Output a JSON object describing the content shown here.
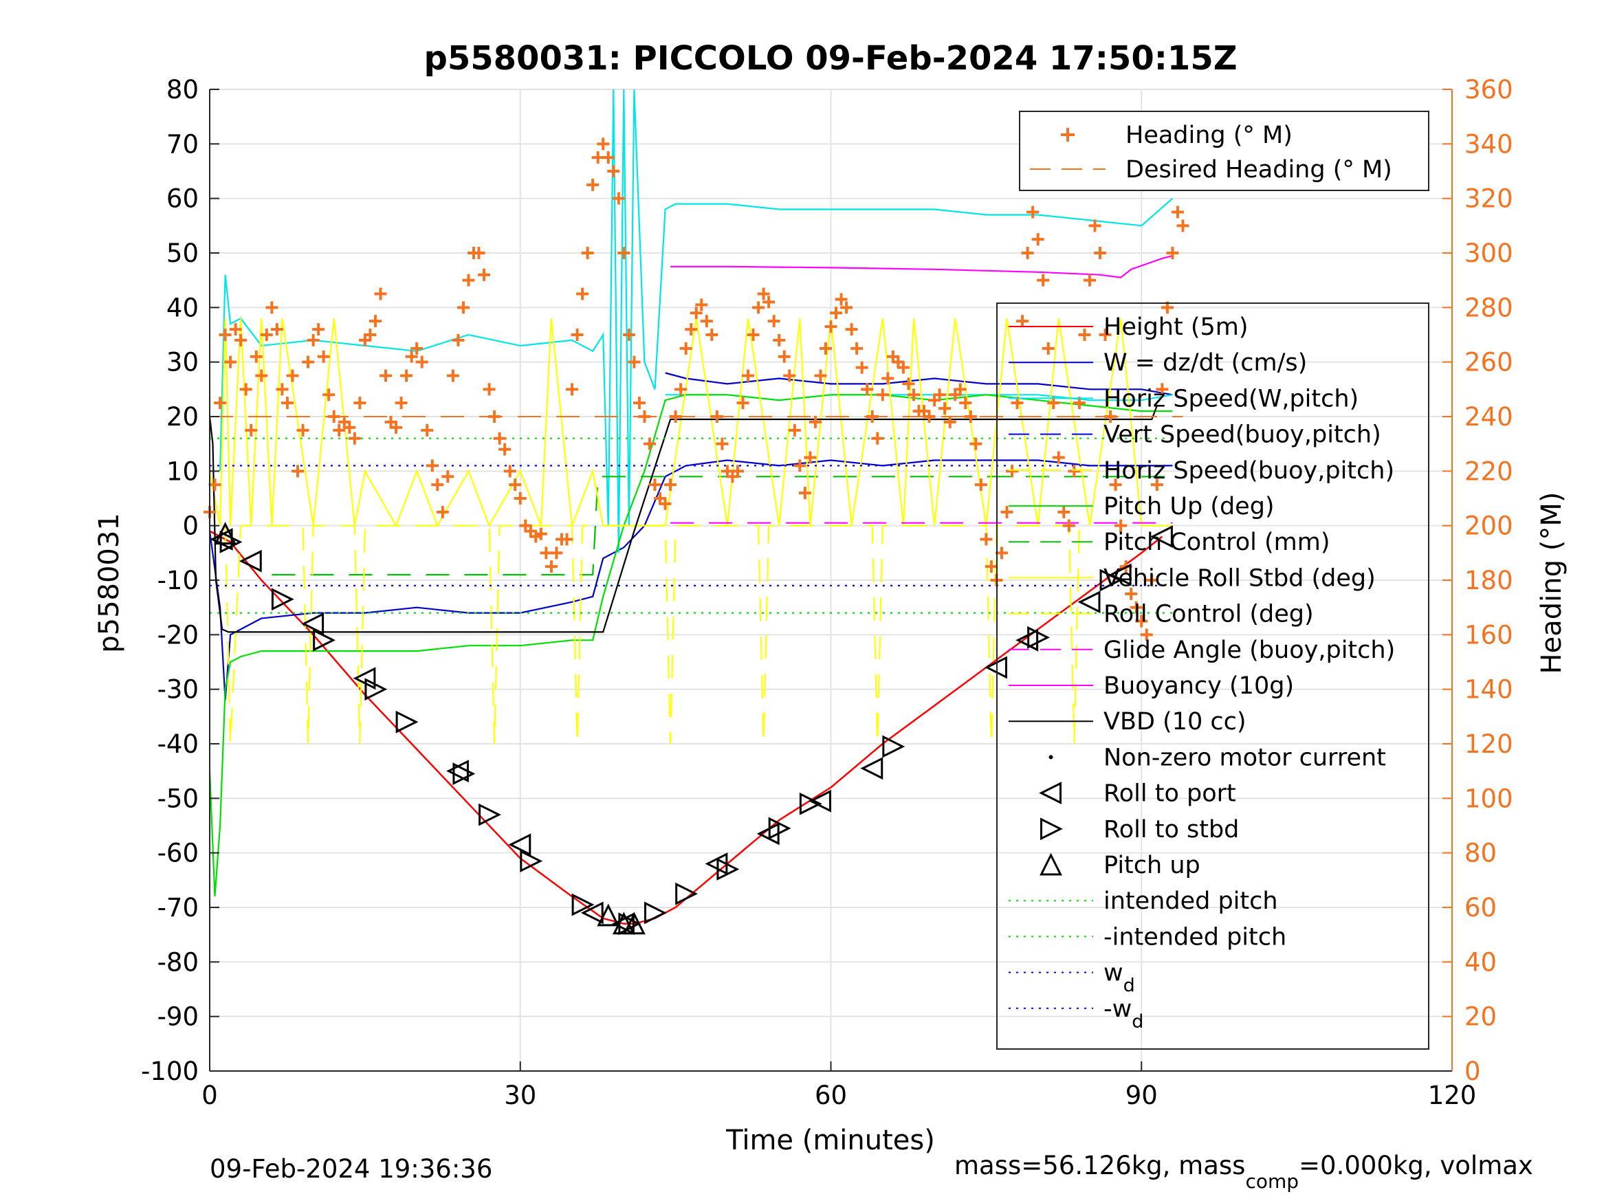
{
  "chart_data": {
    "type": "line",
    "title": "p5580031: PICCOLO 09-Feb-2024 17:50:15Z",
    "xlabel": "Time (minutes)",
    "ylabel": "p5580031",
    "ylabel_right": "Heading (°M)",
    "xlim": [
      0,
      120
    ],
    "ylim": [
      -100,
      80
    ],
    "ylim_right": [
      0,
      360
    ],
    "xticks": [
      "0",
      "30",
      "60",
      "90",
      "120"
    ],
    "yticks": [
      "80",
      "70",
      "60",
      "50",
      "40",
      "30",
      "20",
      "10",
      "0",
      "-10",
      "-20",
      "-30",
      "-40",
      "-50",
      "-60",
      "-70",
      "-80",
      "-90",
      "-100"
    ],
    "yticks_right": [
      "360",
      "340",
      "320",
      "300",
      "280",
      "260",
      "240",
      "220",
      "200",
      "180",
      "160",
      "140",
      "120",
      "100",
      "80",
      "60",
      "40",
      "20",
      "0"
    ],
    "grid": true,
    "legend_top": {
      "placement": "top-right",
      "entries": [
        {
          "label": "Heading (° M)",
          "color": "#f47320",
          "style": "plus"
        },
        {
          "label": "Desired Heading (° M)",
          "color": "#f47320",
          "style": "dash"
        }
      ]
    },
    "legend_main": {
      "placement": "right",
      "entries": [
        {
          "label": "Height (5m)",
          "color": "#ff0000",
          "style": "solid"
        },
        {
          "label": "W = dz/dt (cm/s)",
          "color": "#0000c8",
          "style": "solid"
        },
        {
          "label": "Horiz Speed(W,pitch)",
          "color": "#00e5e5",
          "style": "solid"
        },
        {
          "label": "Vert Speed(buoy,pitch)",
          "color": "#0000ff",
          "style": "dash"
        },
        {
          "label": "Horiz Speed(buoy,pitch)",
          "color": "#ffff00",
          "style": "dash"
        },
        {
          "label": "Pitch Up (deg)",
          "color": "#00e000",
          "style": "solid"
        },
        {
          "label": "Pitch Control (mm)",
          "color": "#00c000",
          "style": "dash"
        },
        {
          "label": "Vehicle Roll Stbd (deg)",
          "color": "#ffff00",
          "style": "solid"
        },
        {
          "label": "Roll Control (deg)",
          "color": "#ffff00",
          "style": "dash"
        },
        {
          "label": "Glide Angle (buoy,pitch)",
          "color": "#ff00ff",
          "style": "dash"
        },
        {
          "label": "Buoyancy (10g)",
          "color": "#ff00ff",
          "style": "solid"
        },
        {
          "label": "VBD (10 cc)",
          "color": "#000000",
          "style": "solid"
        },
        {
          "label": "Non-zero motor current",
          "color": "#000000",
          "style": "dot"
        },
        {
          "label": "Roll to port",
          "color": "#000000",
          "style": "tri-left"
        },
        {
          "label": "Roll to stbd",
          "color": "#000000",
          "style": "tri-right"
        },
        {
          "label": "Pitch up",
          "color": "#000000",
          "style": "tri-up"
        },
        {
          "label": "intended pitch",
          "color": "#00e000",
          "style": "dotted"
        },
        {
          "label": "-intended pitch",
          "color": "#00e000",
          "style": "dotted"
        },
        {
          "label": "w",
          "sub": "d",
          "color": "#0000ff",
          "style": "dotted"
        },
        {
          "label": "-w",
          "sub": "d",
          "color": "#0000ff",
          "style": "dotted"
        }
      ]
    },
    "series": [
      {
        "name": "Height (5m)",
        "color": "#ff0000",
        "x": [
          0,
          1,
          2,
          5,
          10,
          15,
          20,
          25,
          30,
          35,
          38,
          40,
          41,
          43,
          45,
          50,
          55,
          60,
          65,
          70,
          75,
          80,
          85,
          90,
          92
        ],
        "y": [
          -1,
          -2,
          -3,
          -10,
          -20,
          -31,
          -41,
          -51,
          -61,
          -68,
          -72,
          -73,
          -73,
          -72,
          -70,
          -62,
          -54,
          -48,
          -40,
          -33,
          -26,
          -19,
          -12,
          -5,
          -2
        ]
      },
      {
        "name": "W = dz/dt (cm/s)",
        "color": "#0000c8",
        "x": [
          0,
          1,
          1.5,
          2,
          3,
          5,
          10,
          15,
          20,
          25,
          30,
          35,
          37,
          38,
          40,
          42,
          44,
          46,
          50,
          55,
          60,
          65,
          70,
          75,
          80,
          85,
          90,
          93
        ],
        "y": [
          -1,
          -15,
          -32,
          -20,
          -19,
          -17,
          -16,
          -16,
          -15,
          -16,
          -16,
          -14,
          -13,
          -6,
          -4,
          0,
          9,
          11,
          12,
          11,
          12,
          11,
          12,
          12,
          12,
          11,
          11,
          11
        ]
      },
      {
        "name": "W = dz/dt upper trace",
        "color": "#0000c8",
        "x": [
          44,
          46,
          50,
          55,
          60,
          65,
          70,
          75,
          80,
          85,
          90,
          93
        ],
        "y": [
          28,
          27,
          26,
          27,
          26,
          26,
          27,
          26,
          26,
          25,
          25,
          24
        ]
      },
      {
        "name": "Horiz Speed(W,pitch)",
        "color": "#00e5e5",
        "x": [
          1,
          1.5,
          2,
          3,
          5,
          10,
          15,
          20,
          25,
          30,
          35,
          37,
          38,
          38.5,
          39,
          39.5,
          40,
          40.5,
          41,
          42,
          43,
          44,
          45,
          50,
          55,
          60,
          65,
          70,
          75,
          80,
          85,
          90,
          93
        ],
        "y": [
          10,
          46,
          37,
          38,
          33,
          34,
          33,
          32,
          35,
          33,
          34,
          32,
          35,
          0,
          80,
          -5,
          80,
          0,
          80,
          30,
          25,
          58,
          59,
          59,
          58,
          58,
          58,
          58,
          57,
          57,
          56,
          55,
          60
        ]
      },
      {
        "name": "Horiz Speed(W,pitch) lower",
        "color": "#00e5e5",
        "x": [
          44,
          50,
          55,
          60,
          65,
          70,
          75,
          80,
          85,
          90,
          93
        ],
        "y": [
          24,
          24,
          23,
          24,
          24,
          24,
          24,
          24,
          23,
          23,
          24
        ]
      },
      {
        "name": "Pitch Up (deg)",
        "color": "#00e000",
        "x": [
          0,
          0.5,
          1,
          1.5,
          2,
          3,
          5,
          10,
          15,
          20,
          25,
          30,
          35,
          37,
          38,
          40,
          42,
          44,
          46,
          50,
          55,
          60,
          65,
          70,
          75,
          80,
          85,
          90,
          93
        ],
        "y": [
          -45,
          -68,
          -55,
          -30,
          -25,
          -24,
          -23,
          -23,
          -23,
          -23,
          -22,
          -22,
          -21,
          -21,
          -13,
          0,
          10,
          23,
          24,
          24,
          23,
          24,
          24,
          23,
          24,
          23,
          22,
          21,
          21
        ]
      },
      {
        "name": "Pitch Control (mm)",
        "color": "#00c000",
        "x": [
          6,
          37,
          37.5,
          44,
          44.5,
          93
        ],
        "y": [
          -9,
          -9,
          9,
          9,
          9,
          9
        ]
      },
      {
        "name": "Vehicle Roll Stbd (deg)",
        "color": "#ffff00",
        "x": [
          0,
          1,
          1.5,
          2,
          3,
          4,
          5,
          6,
          7,
          10,
          12,
          14,
          15,
          18,
          20,
          22,
          25,
          27,
          30,
          32,
          33,
          35,
          37,
          38,
          40,
          42,
          44,
          47,
          50,
          52,
          55,
          57,
          58,
          60,
          62,
          65,
          67,
          68,
          70,
          72,
          75,
          77,
          80,
          82,
          85,
          88,
          90,
          93
        ],
        "y": [
          10,
          0,
          38,
          0,
          38,
          0,
          38,
          0,
          38,
          0,
          38,
          0,
          10,
          0,
          10,
          0,
          10,
          0,
          10,
          0,
          38,
          0,
          10,
          0,
          0,
          0,
          0,
          38,
          0,
          38,
          0,
          38,
          0,
          38,
          0,
          38,
          0,
          38,
          0,
          38,
          0,
          38,
          0,
          38,
          0,
          38,
          0,
          0
        ]
      },
      {
        "name": "Roll Control (deg)",
        "color": "#ffff00",
        "x": [
          1.5,
          2,
          3,
          9,
          9.5,
          10,
          14,
          14.5,
          15,
          27,
          27.5,
          28,
          35,
          35.5,
          36,
          44,
          44.5,
          45,
          53,
          53.5,
          54,
          64,
          64.5,
          65,
          75,
          75.5,
          76,
          83,
          83.5,
          84
        ],
        "y": [
          0,
          -40,
          0,
          0,
          -40,
          0,
          0,
          -40,
          0,
          0,
          -40,
          0,
          0,
          -40,
          0,
          0,
          -40,
          0,
          0,
          -40,
          0,
          0,
          -40,
          0,
          0,
          -40,
          0,
          0,
          -40,
          0
        ]
      },
      {
        "name": "Buoyancy (10g)",
        "color": "#ff00ff",
        "x": [
          44.5,
          50,
          60,
          70,
          80,
          86,
          88,
          89,
          92,
          93
        ],
        "y": [
          47.5,
          47.5,
          47.3,
          47,
          46.5,
          46,
          45.5,
          47,
          49,
          49.5
        ]
      },
      {
        "name": "Glide Angle (buoy,pitch)",
        "color": "#ff00ff",
        "x": [
          44.5,
          93
        ],
        "y": [
          0.5,
          0.5
        ]
      },
      {
        "name": "VBD (10 cc)",
        "color": "#000000",
        "x": [
          0,
          0.3,
          0.6,
          1.2,
          1.8,
          38,
          41,
          44.5,
          91,
          91.5
        ],
        "y": [
          20,
          15,
          -10,
          -19,
          -19.5,
          -19.5,
          -1,
          19.5,
          19.5,
          22
        ]
      },
      {
        "name": "intended pitch",
        "color": "#00e000",
        "style": "dotted",
        "x": [
          0,
          93
        ],
        "y": [
          16,
          16
        ]
      },
      {
        "name": "-intended pitch",
        "color": "#00e000",
        "style": "dotted",
        "x": [
          0,
          93
        ],
        "y": [
          -16,
          -16
        ]
      },
      {
        "name": "w_d",
        "color": "#0000ff",
        "style": "dotted",
        "x": [
          0,
          93
        ],
        "y": [
          11,
          11
        ]
      },
      {
        "name": "-w_d",
        "color": "#0000ff",
        "style": "dotted",
        "x": [
          0,
          93
        ],
        "y": [
          -11,
          -11
        ]
      }
    ],
    "markers": {
      "roll_to_port": {
        "x": [
          1.2,
          4,
          10,
          15,
          24,
          30,
          37,
          40,
          49,
          54,
          59,
          64,
          76,
          79,
          85,
          88,
          92
        ],
        "y": [
          -2.5,
          -6.5,
          -18,
          -28,
          -45,
          -58.5,
          -71,
          -73,
          -62,
          -56.5,
          -50.5,
          -44.5,
          -26,
          -21,
          -14,
          -9,
          -2
        ]
      },
      "roll_to_stbd": {
        "x": [
          2,
          7,
          11,
          16,
          19,
          24.5,
          27,
          31,
          36,
          40.5,
          43,
          46,
          50,
          55,
          58,
          66,
          80,
          87
        ],
        "y": [
          -3,
          -13.5,
          -21,
          -30,
          -36,
          -45.5,
          -53,
          -61.5,
          -69.5,
          -73,
          -71,
          -67.5,
          -63,
          -55.5,
          -51,
          -40.5,
          -20.5,
          -10
        ]
      },
      "pitch_up": {
        "x": [
          1.5,
          38.5,
          40,
          41
        ],
        "y": [
          -1.5,
          -71.5,
          -73,
          -73
        ]
      }
    },
    "heading": {
      "x": [
        0,
        0.5,
        1,
        1.5,
        2,
        2.5,
        3,
        3.5,
        4,
        4.5,
        5,
        5.5,
        6,
        6.5,
        7,
        7.5,
        8,
        8.5,
        9,
        9.5,
        10,
        10.5,
        11,
        11.5,
        12,
        12.5,
        13,
        13.5,
        14,
        14.5,
        15,
        15.5,
        16,
        16.5,
        17,
        17.5,
        18,
        18.5,
        19,
        19.5,
        20,
        20.5,
        21,
        21.5,
        22,
        22.5,
        23,
        23.5,
        24,
        24.5,
        25,
        25.5,
        26,
        26.5,
        27,
        27.5,
        28,
        28.5,
        29,
        29.5,
        30,
        30.5,
        31,
        31.5,
        32,
        32.5,
        33,
        33.5,
        34,
        34.5,
        35,
        35.5,
        36,
        36.5,
        37,
        37.5,
        38,
        38.5,
        39,
        39.5,
        40,
        40.5,
        41,
        41.5,
        42,
        42.5,
        43,
        43.5,
        44,
        44.5,
        45,
        45.5,
        46,
        46.5,
        47,
        47.5,
        48,
        48.5,
        49,
        49.5,
        50,
        50.5,
        51,
        51.5,
        52,
        52.5,
        53,
        53.5,
        54,
        54.5,
        55,
        55.5,
        56,
        56.5,
        57,
        57.5,
        58,
        58.5,
        59,
        59.5,
        60,
        60.5,
        61,
        61.5,
        62,
        62.5,
        63,
        63.5,
        64,
        64.5,
        65,
        65.5,
        66,
        66.5,
        67,
        67.5,
        68,
        68.5,
        69,
        69.5,
        70,
        70.5,
        71,
        71.5,
        72,
        72.5,
        73,
        73.5,
        74,
        74.5,
        75,
        75.5,
        76,
        76.5,
        77,
        77.5,
        78,
        78.5,
        79,
        79.5,
        80,
        80.5,
        81,
        81.5,
        82,
        82.5,
        83,
        83.5,
        84,
        84.5,
        85,
        85.5,
        86,
        86.5,
        87,
        87.5,
        88,
        88.5,
        89,
        89.5,
        90,
        90.5,
        91,
        91.5,
        92,
        92.5,
        93,
        93.5,
        94
      ],
      "y": [
        205,
        215,
        245,
        270,
        260,
        272,
        268,
        250,
        235,
        262,
        255,
        270,
        280,
        272,
        250,
        245,
        255,
        220,
        235,
        260,
        268,
        272,
        262,
        248,
        240,
        235,
        238,
        236,
        232,
        245,
        268,
        270,
        275,
        285,
        255,
        238,
        236,
        245,
        255,
        262,
        265,
        260,
        235,
        222,
        215,
        205,
        218,
        255,
        268,
        280,
        290,
        300,
        300,
        292,
        250,
        240,
        232,
        228,
        220,
        215,
        210,
        200,
        198,
        196,
        197,
        190,
        185,
        190,
        195,
        195,
        250,
        270,
        285,
        300,
        325,
        335,
        340,
        335,
        330,
        320,
        300,
        270,
        260,
        245,
        240,
        230,
        215,
        210,
        208,
        215,
        240,
        250,
        265,
        272,
        278,
        281,
        275,
        270,
        240,
        230,
        220,
        218,
        220,
        245,
        255,
        270,
        280,
        285,
        282,
        275,
        268,
        262,
        255,
        235,
        222,
        212,
        225,
        238,
        255,
        265,
        273,
        278,
        283,
        280,
        272,
        265,
        258,
        250,
        240,
        232,
        248,
        254,
        262,
        260,
        258,
        252,
        248,
        242,
        242,
        240,
        246,
        248,
        243,
        238,
        248,
        250,
        245,
        240,
        230,
        215,
        195,
        185,
        180,
        190,
        205,
        220,
        245,
        275,
        300,
        315,
        305,
        290,
        265,
        245,
        225,
        205,
        200,
        220,
        245,
        270,
        290,
        310,
        300,
        270,
        240,
        215,
        200,
        185,
        175,
        170,
        165,
        160,
        180,
        215,
        250,
        280,
        300,
        315,
        310
      ],
      "desired": 240
    },
    "footer_left": "09-Feb-2024 19:36:36",
    "footer_right": {
      "a": "mass=56.126kg, mass",
      "sub": "comp",
      "b": "=0.000kg, volmax"
    }
  }
}
